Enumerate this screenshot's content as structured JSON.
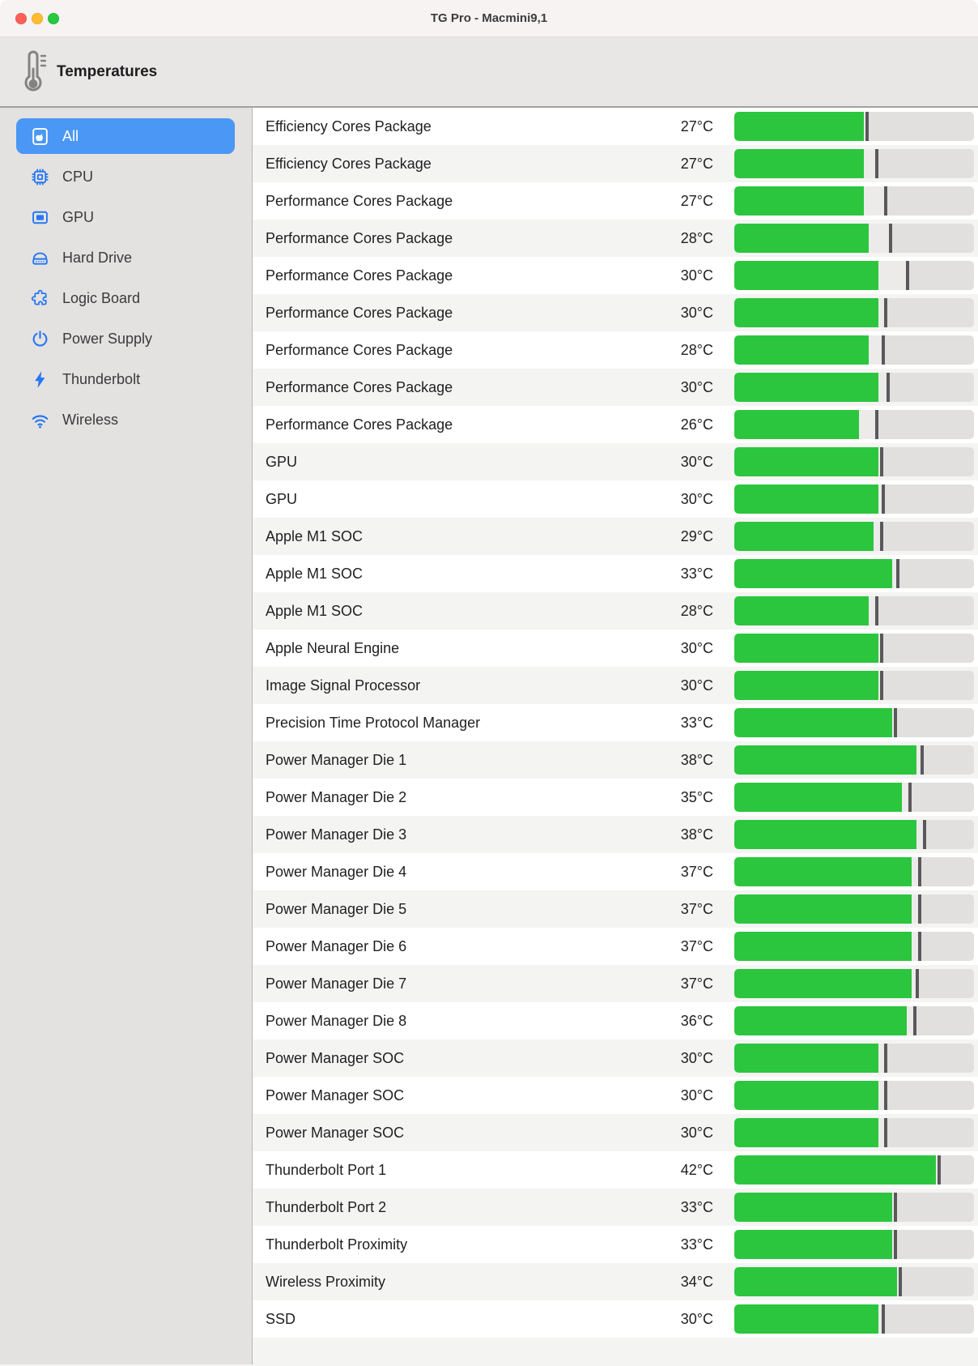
{
  "window": {
    "title": "TG Pro - Macmini9,1"
  },
  "toolbar": {
    "title": "Temperatures",
    "icon": "thermometer-icon"
  },
  "sidebar": {
    "items": [
      {
        "label": "All",
        "icon": "chip-apple-icon",
        "selected": true
      },
      {
        "label": "CPU",
        "icon": "cpu-icon",
        "selected": false
      },
      {
        "label": "GPU",
        "icon": "gpu-icon",
        "selected": false
      },
      {
        "label": "Hard Drive",
        "icon": "hard-drive-icon",
        "selected": false
      },
      {
        "label": "Logic Board",
        "icon": "puzzle-icon",
        "selected": false
      },
      {
        "label": "Power Supply",
        "icon": "power-icon",
        "selected": false
      },
      {
        "label": "Thunderbolt",
        "icon": "bolt-icon",
        "selected": false
      },
      {
        "label": "Wireless",
        "icon": "wifi-icon",
        "selected": false
      }
    ]
  },
  "temperature_scale": {
    "min_c": 0,
    "max_c": 50
  },
  "sensors": [
    {
      "name": "Efficiency Cores Package",
      "temp_c": 27,
      "temp_label": "27°C",
      "max_tick_c": 28
    },
    {
      "name": "Efficiency Cores Package",
      "temp_c": 27,
      "temp_label": "27°C",
      "max_tick_c": 30
    },
    {
      "name": "Performance Cores Package",
      "temp_c": 27,
      "temp_label": "27°C",
      "max_tick_c": 32
    },
    {
      "name": "Performance Cores Package",
      "temp_c": 28,
      "temp_label": "28°C",
      "max_tick_c": 33
    },
    {
      "name": "Performance Cores Package",
      "temp_c": 30,
      "temp_label": "30°C",
      "max_tick_c": 36.5
    },
    {
      "name": "Performance Cores Package",
      "temp_c": 30,
      "temp_label": "30°C",
      "max_tick_c": 32
    },
    {
      "name": "Performance Cores Package",
      "temp_c": 28,
      "temp_label": "28°C",
      "max_tick_c": 31.5
    },
    {
      "name": "Performance Cores Package",
      "temp_c": 30,
      "temp_label": "30°C",
      "max_tick_c": 32.5
    },
    {
      "name": "Performance Cores Package",
      "temp_c": 26,
      "temp_label": "26°C",
      "max_tick_c": 30
    },
    {
      "name": "GPU",
      "temp_c": 30,
      "temp_label": "30°C",
      "max_tick_c": 31
    },
    {
      "name": "GPU",
      "temp_c": 30,
      "temp_label": "30°C",
      "max_tick_c": 31.5
    },
    {
      "name": "Apple M1 SOC",
      "temp_c": 29,
      "temp_label": "29°C",
      "max_tick_c": 31
    },
    {
      "name": "Apple M1 SOC",
      "temp_c": 33,
      "temp_label": "33°C",
      "max_tick_c": 34.5
    },
    {
      "name": "Apple M1 SOC",
      "temp_c": 28,
      "temp_label": "28°C",
      "max_tick_c": 30
    },
    {
      "name": "Apple Neural Engine",
      "temp_c": 30,
      "temp_label": "30°C",
      "max_tick_c": 31
    },
    {
      "name": "Image Signal Processor",
      "temp_c": 30,
      "temp_label": "30°C",
      "max_tick_c": 31
    },
    {
      "name": "Precision Time Protocol Manager",
      "temp_c": 33,
      "temp_label": "33°C",
      "max_tick_c": 34
    },
    {
      "name": "Power Manager Die 1",
      "temp_c": 38,
      "temp_label": "38°C",
      "max_tick_c": 39.5
    },
    {
      "name": "Power Manager Die 2",
      "temp_c": 35,
      "temp_label": "35°C",
      "max_tick_c": 37
    },
    {
      "name": "Power Manager Die 3",
      "temp_c": 38,
      "temp_label": "38°C",
      "max_tick_c": 40
    },
    {
      "name": "Power Manager Die 4",
      "temp_c": 37,
      "temp_label": "37°C",
      "max_tick_c": 39
    },
    {
      "name": "Power Manager Die 5",
      "temp_c": 37,
      "temp_label": "37°C",
      "max_tick_c": 39
    },
    {
      "name": "Power Manager Die 6",
      "temp_c": 37,
      "temp_label": "37°C",
      "max_tick_c": 39
    },
    {
      "name": "Power Manager Die 7",
      "temp_c": 37,
      "temp_label": "37°C",
      "max_tick_c": 38.5
    },
    {
      "name": "Power Manager Die 8",
      "temp_c": 36,
      "temp_label": "36°C",
      "max_tick_c": 38
    },
    {
      "name": "Power Manager SOC",
      "temp_c": 30,
      "temp_label": "30°C",
      "max_tick_c": 32
    },
    {
      "name": "Power Manager SOC",
      "temp_c": 30,
      "temp_label": "30°C",
      "max_tick_c": 32
    },
    {
      "name": "Power Manager SOC",
      "temp_c": 30,
      "temp_label": "30°C",
      "max_tick_c": 32
    },
    {
      "name": "Thunderbolt Port 1",
      "temp_c": 42,
      "temp_label": "42°C",
      "max_tick_c": 43
    },
    {
      "name": "Thunderbolt Port 2",
      "temp_c": 33,
      "temp_label": "33°C",
      "max_tick_c": 34
    },
    {
      "name": "Thunderbolt Proximity",
      "temp_c": 33,
      "temp_label": "33°C",
      "max_tick_c": 34
    },
    {
      "name": "Wireless Proximity",
      "temp_c": 34,
      "temp_label": "34°C",
      "max_tick_c": 35
    },
    {
      "name": "SSD",
      "temp_c": 30,
      "temp_label": "30°C",
      "max_tick_c": 31.5
    }
  ],
  "colors": {
    "bar_green": "#2bc63e",
    "selection_blue": "#4a97f5",
    "icon_blue": "#2677f4",
    "tick_gray": "#59595b"
  }
}
